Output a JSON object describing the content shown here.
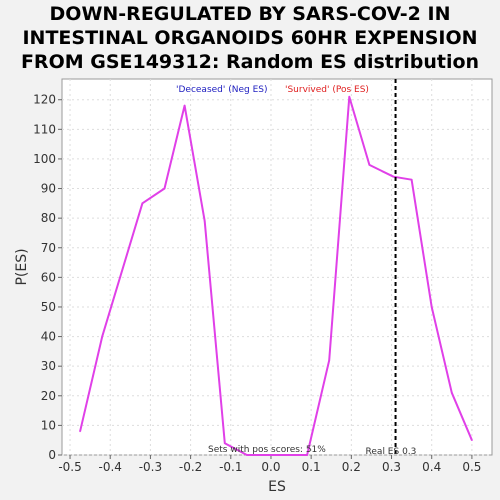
{
  "title_lines": [
    "DOWN-REGULATED BY SARS-COV-2 IN",
    "INTESTINAL ORGANOIDS 60HR EXPENSION",
    "FROM GSE149312: Random ES distribution"
  ],
  "chart_data": {
    "type": "line",
    "xlabel": "ES",
    "ylabel": "P(ES)",
    "xlim": [
      -0.52,
      0.55
    ],
    "ylim": [
      0,
      127
    ],
    "xticks": [
      "-0.5",
      "-0.4",
      "-0.3",
      "-0.2",
      "-0.1",
      "0.0",
      "0.1",
      "0.2",
      "0.3",
      "0.4",
      "0.5"
    ],
    "xtick_values": [
      -0.5,
      -0.4,
      -0.3,
      -0.2,
      -0.1,
      0.0,
      0.1,
      0.2,
      0.3,
      0.4,
      0.5
    ],
    "yticks": [
      "0",
      "10",
      "20",
      "30",
      "40",
      "50",
      "60",
      "70",
      "80",
      "90",
      "100",
      "110",
      "120"
    ],
    "ytick_values": [
      0,
      10,
      20,
      30,
      40,
      50,
      60,
      70,
      80,
      90,
      100,
      110,
      120
    ],
    "grid": true,
    "series": [
      {
        "color": "#e040e8",
        "x": [
          -0.475,
          -0.42,
          -0.32,
          -0.265,
          -0.215,
          -0.165,
          -0.115,
          -0.06,
          0.09,
          0.145,
          0.195,
          0.245,
          0.305,
          0.35,
          0.4,
          0.45,
          0.5
        ],
        "y": [
          8,
          40,
          85,
          90,
          118,
          79,
          4,
          0,
          0,
          32,
          121,
          98,
          94,
          93,
          50,
          21,
          5
        ]
      }
    ],
    "real_es": {
      "x": 0.31,
      "label": "Real ES 0.3"
    },
    "legend": [
      {
        "text": "'Deceased' (Neg ES)",
        "color": "#2020c0"
      },
      {
        "text": "'Survived' (Pos ES)",
        "color": "#e02020"
      }
    ],
    "annotation": "Sets with pos scores: 51%"
  }
}
